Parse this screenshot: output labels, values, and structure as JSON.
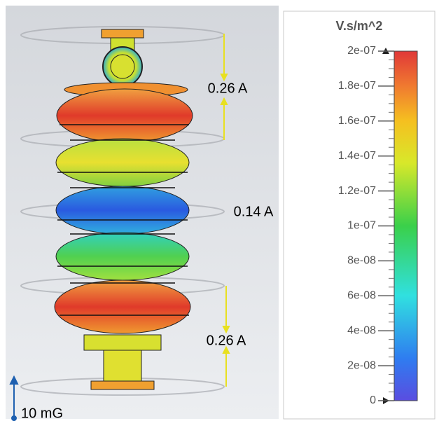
{
  "annotations": {
    "top_current": "0.26 A",
    "middle_current": "0.14 A",
    "bottom_current": "0.26 A",
    "scale": "10 mG"
  },
  "colorbar": {
    "title": "V.s/m^2",
    "range": [
      0,
      2e-07
    ],
    "ticks": [
      0,
      {
        "value": 2e-08,
        "label": "2e-08"
      },
      {
        "value": 4e-08,
        "label": "4e-08"
      },
      {
        "value": 6e-08,
        "label": "6e-08"
      },
      {
        "value": 8e-08,
        "label": "8e-08"
      },
      {
        "value": 1e-07,
        "label": "1e-07"
      },
      {
        "value": 1.2e-07,
        "label": "1.2e-07"
      },
      {
        "value": 1.4e-07,
        "label": "1.4e-07"
      },
      {
        "value": 1.6e-07,
        "label": "1.6e-07"
      },
      {
        "value": 1.8e-07,
        "label": "1.8e-07"
      },
      {
        "value": 2e-07,
        "label": "2e-07"
      }
    ]
  }
}
